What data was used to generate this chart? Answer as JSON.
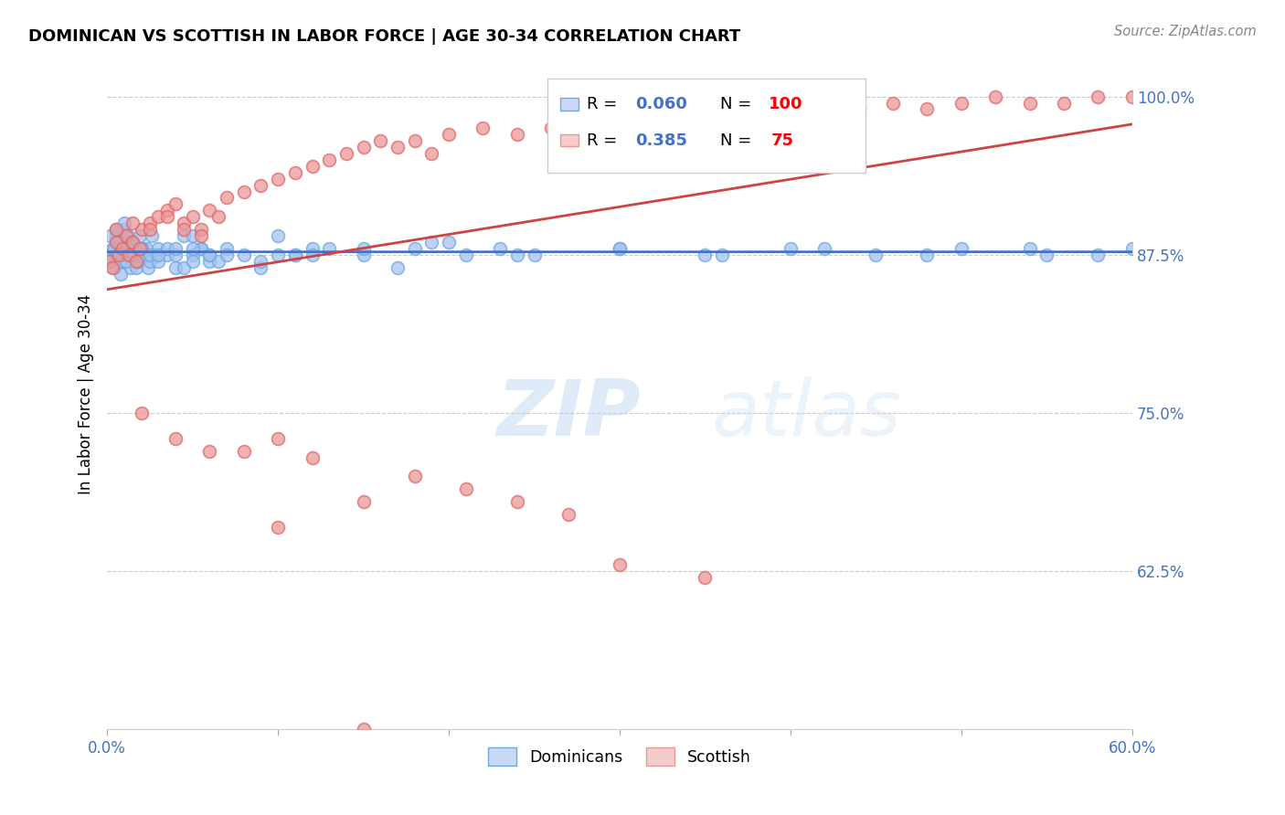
{
  "title": "DOMINICAN VS SCOTTISH IN LABOR FORCE | AGE 30-34 CORRELATION CHART",
  "source": "Source: ZipAtlas.com",
  "ylabel": "In Labor Force | Age 30-34",
  "x_min": 0.0,
  "x_max": 0.6,
  "y_min": 0.5,
  "y_max": 1.03,
  "ytick_labels": [
    "62.5%",
    "75.0%",
    "87.5%",
    "100.0%"
  ],
  "ytick_values": [
    0.625,
    0.75,
    0.875,
    1.0
  ],
  "dominican_color": "#6fa8dc",
  "dominican_face_color": "#a4c2f4",
  "scottish_color": "#e06666",
  "scottish_face_color": "#ea9999",
  "dominican_R": 0.06,
  "dominican_N": 100,
  "scottish_R": 0.385,
  "scottish_N": 75,
  "regression_blue": "#4472c4",
  "regression_pink": "#cc4444",
  "background_color": "#ffffff",
  "grid_color": "#cccccc",
  "dom_x": [
    0.001,
    0.002,
    0.003,
    0.004,
    0.005,
    0.006,
    0.007,
    0.008,
    0.009,
    0.01,
    0.002,
    0.004,
    0.006,
    0.008,
    0.01,
    0.012,
    0.014,
    0.016,
    0.018,
    0.02,
    0.005,
    0.007,
    0.009,
    0.011,
    0.013,
    0.015,
    0.017,
    0.019,
    0.021,
    0.023,
    0.01,
    0.012,
    0.014,
    0.016,
    0.018,
    0.02,
    0.022,
    0.024,
    0.026,
    0.028,
    0.015,
    0.02,
    0.025,
    0.03,
    0.035,
    0.04,
    0.045,
    0.05,
    0.055,
    0.06,
    0.02,
    0.025,
    0.03,
    0.035,
    0.04,
    0.045,
    0.05,
    0.055,
    0.06,
    0.065,
    0.03,
    0.04,
    0.05,
    0.06,
    0.07,
    0.08,
    0.09,
    0.1,
    0.11,
    0.12,
    0.05,
    0.07,
    0.09,
    0.11,
    0.13,
    0.15,
    0.17,
    0.19,
    0.21,
    0.23,
    0.1,
    0.15,
    0.2,
    0.25,
    0.3,
    0.35,
    0.4,
    0.45,
    0.5,
    0.55,
    0.12,
    0.18,
    0.24,
    0.3,
    0.36,
    0.42,
    0.48,
    0.54,
    0.58,
    0.6
  ],
  "dom_y": [
    0.875,
    0.87,
    0.88,
    0.865,
    0.89,
    0.885,
    0.875,
    0.86,
    0.895,
    0.87,
    0.89,
    0.88,
    0.875,
    0.87,
    0.885,
    0.875,
    0.865,
    0.88,
    0.87,
    0.875,
    0.895,
    0.885,
    0.875,
    0.87,
    0.88,
    0.875,
    0.865,
    0.89,
    0.875,
    0.88,
    0.9,
    0.89,
    0.885,
    0.875,
    0.87,
    0.88,
    0.875,
    0.865,
    0.89,
    0.875,
    0.885,
    0.875,
    0.87,
    0.88,
    0.875,
    0.865,
    0.89,
    0.875,
    0.88,
    0.87,
    0.88,
    0.875,
    0.87,
    0.88,
    0.875,
    0.865,
    0.89,
    0.88,
    0.875,
    0.87,
    0.875,
    0.88,
    0.87,
    0.875,
    0.88,
    0.875,
    0.865,
    0.89,
    0.875,
    0.88,
    0.88,
    0.875,
    0.87,
    0.875,
    0.88,
    0.875,
    0.865,
    0.885,
    0.875,
    0.88,
    0.875,
    0.88,
    0.885,
    0.875,
    0.88,
    0.875,
    0.88,
    0.875,
    0.88,
    0.875,
    0.875,
    0.88,
    0.875,
    0.88,
    0.875,
    0.88,
    0.875,
    0.88,
    0.875,
    0.88
  ],
  "scot_x": [
    0.001,
    0.003,
    0.005,
    0.007,
    0.009,
    0.011,
    0.013,
    0.015,
    0.017,
    0.019,
    0.02,
    0.025,
    0.03,
    0.035,
    0.04,
    0.045,
    0.05,
    0.055,
    0.06,
    0.065,
    0.07,
    0.08,
    0.09,
    0.1,
    0.11,
    0.12,
    0.13,
    0.14,
    0.15,
    0.16,
    0.17,
    0.18,
    0.19,
    0.2,
    0.22,
    0.24,
    0.26,
    0.28,
    0.3,
    0.32,
    0.34,
    0.36,
    0.38,
    0.4,
    0.42,
    0.44,
    0.46,
    0.48,
    0.5,
    0.52,
    0.54,
    0.56,
    0.58,
    0.6,
    0.005,
    0.015,
    0.025,
    0.035,
    0.045,
    0.055,
    0.08,
    0.1,
    0.12,
    0.15,
    0.18,
    0.21,
    0.24,
    0.27,
    0.3,
    0.35,
    0.02,
    0.04,
    0.06,
    0.1,
    0.15
  ],
  "scot_y": [
    0.87,
    0.865,
    0.885,
    0.875,
    0.88,
    0.89,
    0.875,
    0.885,
    0.87,
    0.88,
    0.895,
    0.9,
    0.905,
    0.91,
    0.915,
    0.9,
    0.905,
    0.895,
    0.91,
    0.905,
    0.92,
    0.925,
    0.93,
    0.935,
    0.94,
    0.945,
    0.95,
    0.955,
    0.96,
    0.965,
    0.96,
    0.965,
    0.955,
    0.97,
    0.975,
    0.97,
    0.975,
    0.98,
    0.985,
    0.98,
    0.985,
    0.99,
    0.985,
    0.99,
    0.995,
    0.99,
    0.995,
    0.99,
    0.995,
    1.0,
    0.995,
    0.995,
    1.0,
    1.0,
    0.895,
    0.9,
    0.895,
    0.905,
    0.895,
    0.89,
    0.72,
    0.73,
    0.715,
    0.68,
    0.7,
    0.69,
    0.68,
    0.67,
    0.63,
    0.62,
    0.75,
    0.73,
    0.72,
    0.66,
    0.5
  ]
}
